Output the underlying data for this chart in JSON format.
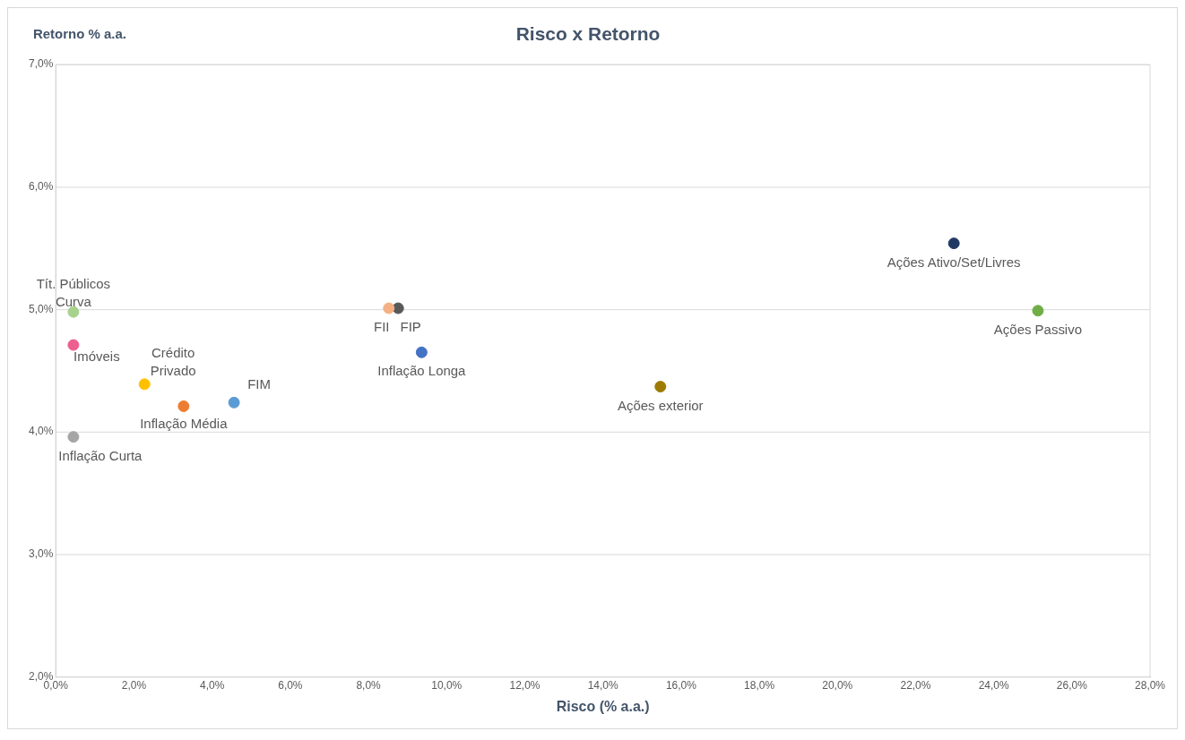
{
  "chart_data": {
    "type": "scatter",
    "title": "Risco x Retorno",
    "xlabel": "Risco (% a.a.)",
    "ylabel": "Retorno % a.a.",
    "xlim": [
      0,
      28
    ],
    "ylim": [
      2,
      7
    ],
    "xticks": [
      {
        "value": 0,
        "label": "0,0%"
      },
      {
        "value": 2,
        "label": "2,0%"
      },
      {
        "value": 4,
        "label": "4,0%"
      },
      {
        "value": 6,
        "label": "6,0%"
      },
      {
        "value": 8,
        "label": "8,0%"
      },
      {
        "value": 10,
        "label": "10,0%"
      },
      {
        "value": 12,
        "label": "12,0%"
      },
      {
        "value": 14,
        "label": "14,0%"
      },
      {
        "value": 16,
        "label": "16,0%"
      },
      {
        "value": 18,
        "label": "18,0%"
      },
      {
        "value": 20,
        "label": "20,0%"
      },
      {
        "value": 22,
        "label": "22,0%"
      },
      {
        "value": 24,
        "label": "24,0%"
      },
      {
        "value": 26,
        "label": "26,0%"
      },
      {
        "value": 28,
        "label": "28,0%"
      }
    ],
    "yticks": [
      {
        "value": 2,
        "label": "2,0%"
      },
      {
        "value": 3,
        "label": "3,0%"
      },
      {
        "value": 4,
        "label": "4,0%"
      },
      {
        "value": 5,
        "label": "5,0%"
      },
      {
        "value": 6,
        "label": "6,0%"
      },
      {
        "value": 7,
        "label": "7,0%"
      }
    ],
    "grid": "y",
    "legend": false,
    "marker": "circle",
    "series": [
      {
        "name": "Tít. Públicos Curva",
        "color": "#a9d18e",
        "x": [
          0.45
        ],
        "values": [
          4.98
        ]
      },
      {
        "name": "Imóveis",
        "color": "#ec5f8f",
        "x": [
          0.45
        ],
        "values": [
          4.71
        ]
      },
      {
        "name": "Crédito Privado",
        "color": "#ffc000",
        "x": [
          2.27
        ],
        "values": [
          4.39
        ]
      },
      {
        "name": "Inflação Média",
        "color": "#ed7d31",
        "x": [
          3.27
        ],
        "values": [
          4.21
        ]
      },
      {
        "name": "FIM",
        "color": "#5b9bd5",
        "x": [
          4.56
        ],
        "values": [
          4.24
        ]
      },
      {
        "name": "Inflação Curta",
        "color": "#a5a5a5",
        "x": [
          0.45
        ],
        "values": [
          3.96
        ]
      },
      {
        "name": "FII",
        "color": "#f4b183",
        "x": [
          8.52
        ],
        "values": [
          5.01
        ]
      },
      {
        "name": "FIP",
        "color": "#595959",
        "x": [
          8.76
        ],
        "values": [
          5.01
        ]
      },
      {
        "name": "Inflação Longa",
        "color": "#4472c4",
        "x": [
          9.36
        ],
        "values": [
          4.65
        ]
      },
      {
        "name": "Ações exterior",
        "color": "#9e7b00",
        "x": [
          15.47
        ],
        "values": [
          4.37
        ]
      },
      {
        "name": "Ações Ativo/Set/Livres",
        "color": "#203864",
        "x": [
          22.98
        ],
        "values": [
          5.54
        ]
      },
      {
        "name": "Ações Passivo",
        "color": "#70ad47",
        "x": [
          25.13
        ],
        "values": [
          4.99
        ]
      }
    ]
  }
}
